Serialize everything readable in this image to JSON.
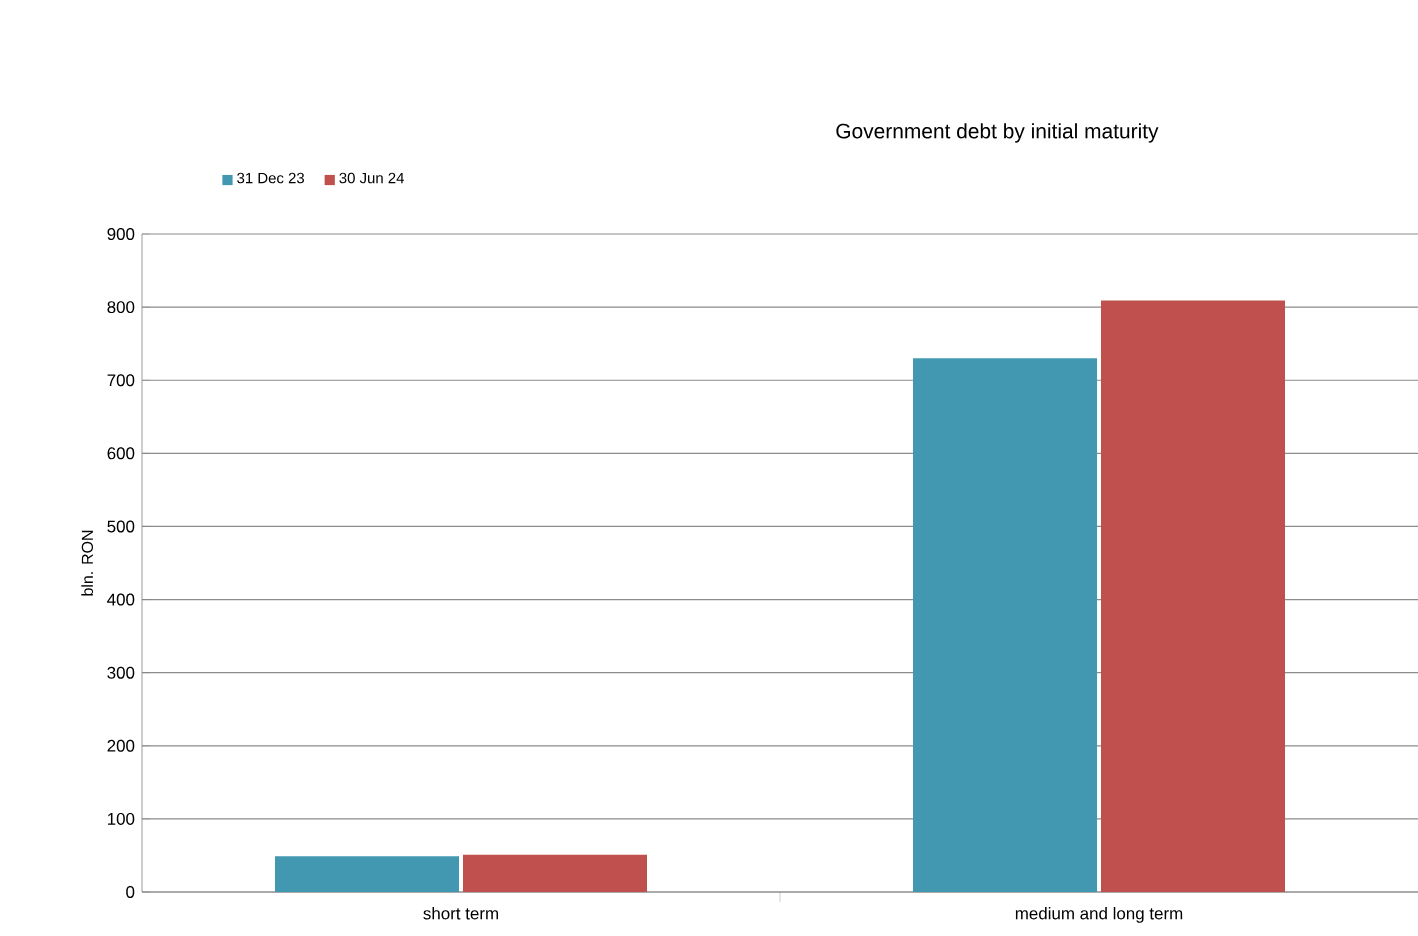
{
  "chart_data": {
    "type": "bar",
    "title": "Government debt by initial maturity",
    "ylabel": "bln. RON",
    "categories": [
      "short term",
      "medium and long term"
    ],
    "series": [
      {
        "name": "31 Dec 23",
        "color": "#4198b0",
        "values": [
          49,
          730
        ]
      },
      {
        "name": "30 Jun 24",
        "color": "#c0504d",
        "values": [
          51,
          809
        ]
      }
    ],
    "ylim": [
      0,
      900
    ],
    "yticks": [
      0,
      100,
      200,
      300,
      400,
      500,
      600,
      700,
      800,
      900
    ],
    "grid": "y",
    "legend": "top left"
  }
}
